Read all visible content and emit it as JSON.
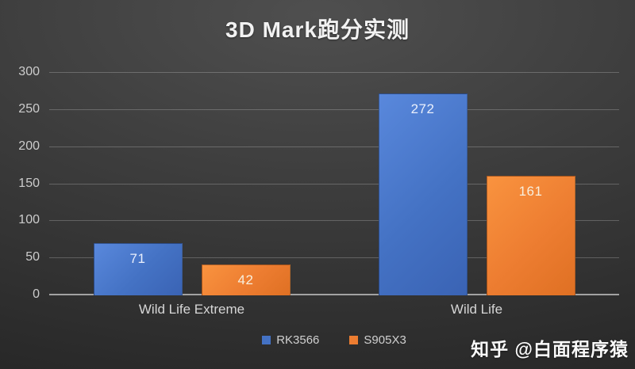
{
  "chart_data": {
    "type": "bar",
    "title": "3D Mark跑分实测",
    "categories": [
      "Wild Life Extreme",
      "Wild Life"
    ],
    "series": [
      {
        "name": "RK3566",
        "color": "#4472C4",
        "color_light": "#5988dc",
        "color_dark": "#3a63b4",
        "label_color": "#e9effc",
        "values": [
          71,
          272
        ]
      },
      {
        "name": "S905X3",
        "color": "#ED7D31",
        "color_light": "#f9933f",
        "color_dark": "#df7023",
        "label_color": "#f8efdd",
        "values": [
          42,
          161
        ]
      }
    ],
    "ylim": [
      0,
      300
    ],
    "yticks": [
      0,
      50,
      100,
      150,
      200,
      250,
      300
    ],
    "grid": true,
    "legend_position": "bottom",
    "data_labels": "inside-end"
  },
  "watermark": "知乎 @白面程序猿"
}
